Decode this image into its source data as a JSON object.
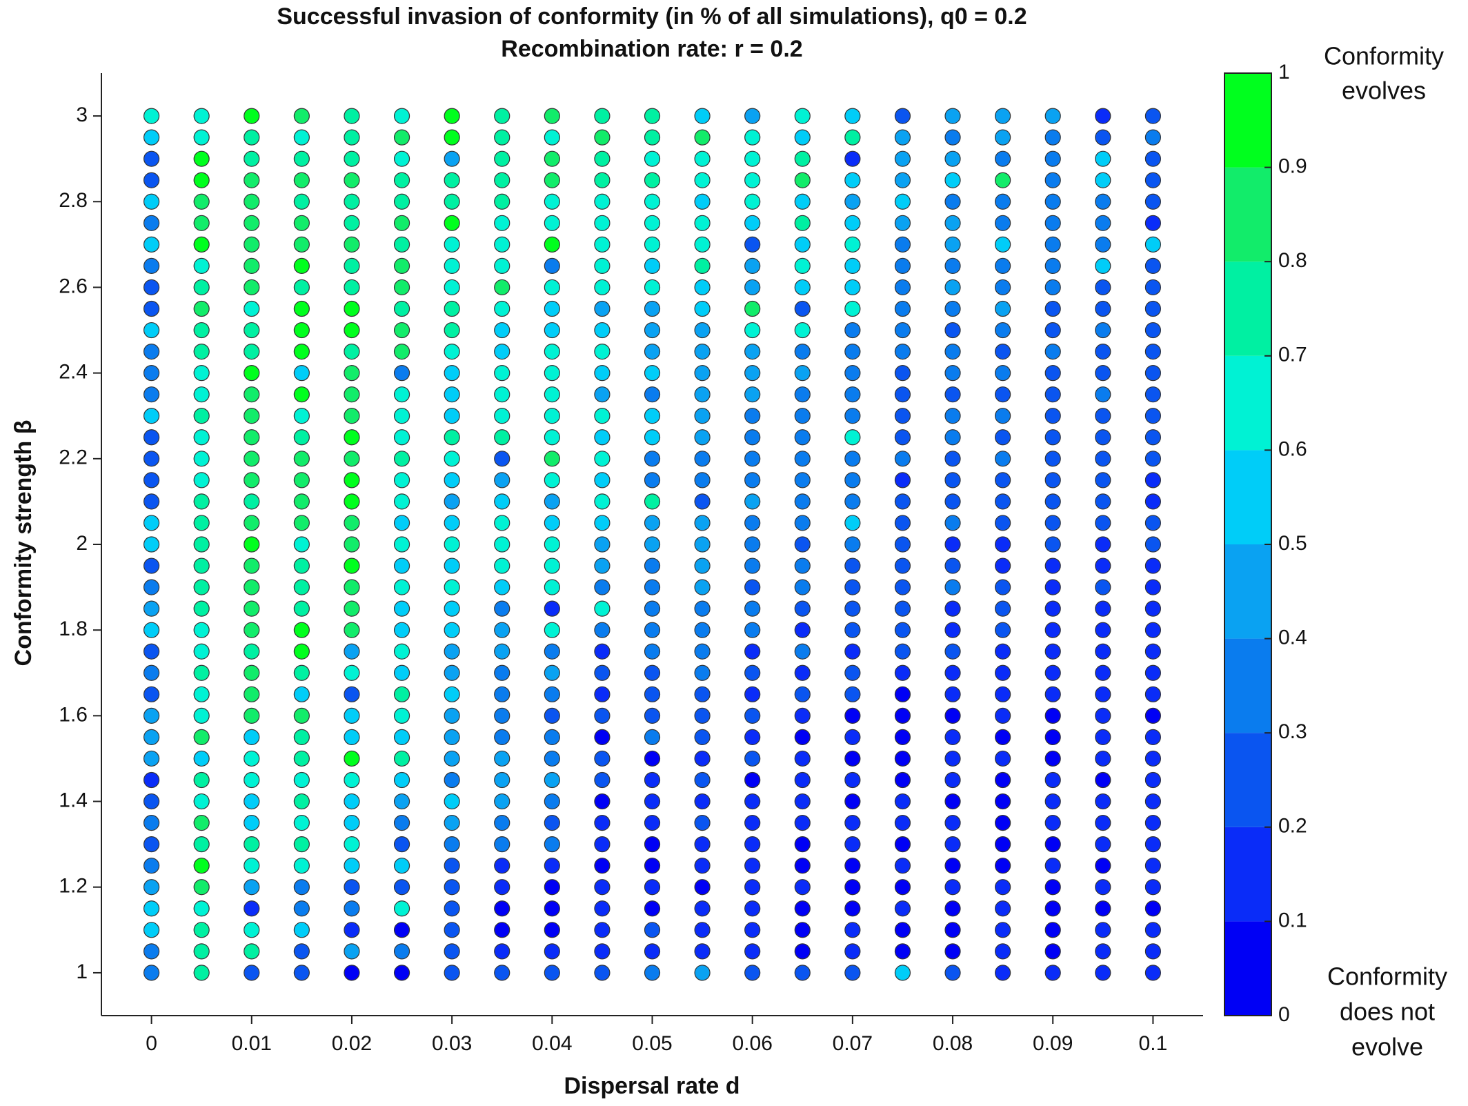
{
  "chart_data": {
    "type": "scatter",
    "title": "Successful invasion of conformity (in % of all simulations), q0 = 0.2",
    "subtitle": "Recombination rate: r = 0.2",
    "xlabel": "Dispersal rate d",
    "ylabel": "Conformity strength β",
    "x": [
      0,
      0.005,
      0.01,
      0.015,
      0.02,
      0.025,
      0.03,
      0.035,
      0.04,
      0.045,
      0.05,
      0.055,
      0.06,
      0.065,
      0.07,
      0.075,
      0.08,
      0.085,
      0.09,
      0.095,
      0.1
    ],
    "y": [
      3,
      2.95,
      2.9,
      2.85,
      2.8,
      2.75,
      2.7,
      2.65,
      2.6,
      2.55,
      2.5,
      2.45,
      2.4,
      2.35,
      2.3,
      2.25,
      2.2,
      2.15,
      2.1,
      2.05,
      2,
      1.95,
      1.9,
      1.85,
      1.8,
      1.75,
      1.7,
      1.65,
      1.6,
      1.55,
      1.5,
      1.45,
      1.4,
      1.35,
      1.3,
      1.25,
      1.2,
      1.15,
      1.1,
      1.05,
      1
    ],
    "values": [
      [
        0.65,
        0.65,
        0.95,
        0.85,
        0.75,
        0.65,
        0.95,
        0.75,
        0.85,
        0.75,
        0.75,
        0.55,
        0.45,
        0.65,
        0.55,
        0.25,
        0.45,
        0.45,
        0.45,
        0.15,
        0.25
      ],
      [
        0.55,
        0.65,
        0.75,
        0.65,
        0.75,
        0.85,
        0.95,
        0.75,
        0.65,
        0.85,
        0.75,
        0.85,
        0.65,
        0.55,
        0.75,
        0.45,
        0.35,
        0.45,
        0.35,
        0.25,
        0.35
      ],
      [
        0.25,
        0.95,
        0.75,
        0.75,
        0.75,
        0.65,
        0.45,
        0.75,
        0.85,
        0.75,
        0.65,
        0.65,
        0.65,
        0.75,
        0.15,
        0.45,
        0.45,
        0.35,
        0.35,
        0.55,
        0.25
      ],
      [
        0.25,
        0.95,
        0.85,
        0.85,
        0.85,
        0.75,
        0.75,
        0.75,
        0.85,
        0.75,
        0.75,
        0.65,
        0.65,
        0.85,
        0.55,
        0.45,
        0.55,
        0.85,
        0.35,
        0.55,
        0.25
      ],
      [
        0.55,
        0.85,
        0.85,
        0.75,
        0.75,
        0.75,
        0.75,
        0.75,
        0.65,
        0.65,
        0.65,
        0.55,
        0.65,
        0.55,
        0.45,
        0.55,
        0.35,
        0.35,
        0.35,
        0.35,
        0.25
      ],
      [
        0.35,
        0.85,
        0.85,
        0.85,
        0.75,
        0.85,
        0.95,
        0.65,
        0.65,
        0.65,
        0.65,
        0.65,
        0.55,
        0.75,
        0.55,
        0.45,
        0.45,
        0.35,
        0.35,
        0.35,
        0.15
      ],
      [
        0.55,
        0.95,
        0.85,
        0.85,
        0.85,
        0.75,
        0.65,
        0.65,
        0.95,
        0.65,
        0.65,
        0.65,
        0.25,
        0.55,
        0.65,
        0.35,
        0.45,
        0.55,
        0.35,
        0.35,
        0.55
      ],
      [
        0.35,
        0.65,
        0.85,
        0.95,
        0.75,
        0.85,
        0.65,
        0.65,
        0.35,
        0.65,
        0.55,
        0.75,
        0.45,
        0.65,
        0.55,
        0.35,
        0.35,
        0.35,
        0.35,
        0.55,
        0.25
      ],
      [
        0.25,
        0.75,
        0.85,
        0.75,
        0.75,
        0.85,
        0.65,
        0.85,
        0.65,
        0.65,
        0.65,
        0.55,
        0.45,
        0.55,
        0.55,
        0.35,
        0.45,
        0.35,
        0.35,
        0.25,
        0.25
      ],
      [
        0.25,
        0.85,
        0.65,
        0.95,
        0.95,
        0.75,
        0.75,
        0.65,
        0.55,
        0.45,
        0.45,
        0.55,
        0.85,
        0.25,
        0.65,
        0.35,
        0.35,
        0.45,
        0.25,
        0.25,
        0.25
      ],
      [
        0.55,
        0.75,
        0.75,
        0.95,
        0.95,
        0.85,
        0.75,
        0.55,
        0.55,
        0.55,
        0.45,
        0.45,
        0.65,
        0.65,
        0.35,
        0.35,
        0.25,
        0.35,
        0.25,
        0.35,
        0.25
      ],
      [
        0.35,
        0.75,
        0.75,
        0.95,
        0.75,
        0.85,
        0.65,
        0.55,
        0.65,
        0.65,
        0.45,
        0.45,
        0.45,
        0.35,
        0.35,
        0.35,
        0.35,
        0.25,
        0.35,
        0.25,
        0.25
      ],
      [
        0.35,
        0.65,
        0.95,
        0.55,
        0.85,
        0.35,
        0.55,
        0.65,
        0.65,
        0.55,
        0.55,
        0.45,
        0.45,
        0.45,
        0.35,
        0.25,
        0.35,
        0.35,
        0.25,
        0.25,
        0.25
      ],
      [
        0.35,
        0.65,
        0.85,
        0.95,
        0.85,
        0.65,
        0.55,
        0.65,
        0.65,
        0.45,
        0.35,
        0.45,
        0.45,
        0.35,
        0.35,
        0.25,
        0.25,
        0.25,
        0.25,
        0.35,
        0.25
      ],
      [
        0.55,
        0.75,
        0.85,
        0.65,
        0.85,
        0.65,
        0.55,
        0.65,
        0.65,
        0.65,
        0.55,
        0.45,
        0.35,
        0.35,
        0.35,
        0.25,
        0.35,
        0.35,
        0.25,
        0.25,
        0.25
      ],
      [
        0.25,
        0.65,
        0.85,
        0.75,
        0.95,
        0.65,
        0.75,
        0.75,
        0.65,
        0.55,
        0.55,
        0.45,
        0.35,
        0.35,
        0.65,
        0.25,
        0.35,
        0.25,
        0.25,
        0.25,
        0.25
      ],
      [
        0.25,
        0.65,
        0.85,
        0.85,
        0.85,
        0.75,
        0.65,
        0.25,
        0.85,
        0.65,
        0.35,
        0.35,
        0.35,
        0.35,
        0.35,
        0.35,
        0.25,
        0.35,
        0.25,
        0.25,
        0.25
      ],
      [
        0.25,
        0.65,
        0.85,
        0.85,
        0.95,
        0.65,
        0.55,
        0.45,
        0.65,
        0.55,
        0.35,
        0.35,
        0.35,
        0.35,
        0.35,
        0.15,
        0.25,
        0.25,
        0.25,
        0.25,
        0.15
      ],
      [
        0.25,
        0.75,
        0.75,
        0.85,
        0.95,
        0.65,
        0.45,
        0.55,
        0.45,
        0.65,
        0.75,
        0.25,
        0.45,
        0.35,
        0.35,
        0.25,
        0.25,
        0.25,
        0.25,
        0.25,
        0.15
      ],
      [
        0.55,
        0.75,
        0.85,
        0.85,
        0.85,
        0.55,
        0.55,
        0.65,
        0.55,
        0.55,
        0.45,
        0.45,
        0.35,
        0.35,
        0.55,
        0.25,
        0.35,
        0.25,
        0.25,
        0.25,
        0.25
      ],
      [
        0.55,
        0.75,
        0.95,
        0.65,
        0.85,
        0.65,
        0.65,
        0.65,
        0.65,
        0.45,
        0.45,
        0.45,
        0.35,
        0.25,
        0.35,
        0.25,
        0.15,
        0.15,
        0.25,
        0.15,
        0.25
      ],
      [
        0.25,
        0.75,
        0.85,
        0.75,
        0.95,
        0.55,
        0.55,
        0.65,
        0.65,
        0.45,
        0.35,
        0.45,
        0.35,
        0.35,
        0.25,
        0.25,
        0.25,
        0.15,
        0.15,
        0.15,
        0.15
      ],
      [
        0.35,
        0.75,
        0.85,
        0.75,
        0.85,
        0.65,
        0.65,
        0.55,
        0.65,
        0.35,
        0.35,
        0.45,
        0.25,
        0.35,
        0.25,
        0.25,
        0.35,
        0.25,
        0.15,
        0.25,
        0.15
      ],
      [
        0.45,
        0.75,
        0.85,
        0.75,
        0.85,
        0.55,
        0.55,
        0.35,
        0.15,
        0.65,
        0.35,
        0.35,
        0.35,
        0.25,
        0.25,
        0.25,
        0.15,
        0.25,
        0.15,
        0.15,
        0.15
      ],
      [
        0.55,
        0.65,
        0.85,
        0.95,
        0.85,
        0.55,
        0.55,
        0.45,
        0.65,
        0.35,
        0.35,
        0.35,
        0.35,
        0.15,
        0.25,
        0.25,
        0.15,
        0.25,
        0.15,
        0.15,
        0.15
      ],
      [
        0.25,
        0.65,
        0.75,
        0.95,
        0.45,
        0.65,
        0.45,
        0.45,
        0.35,
        0.15,
        0.35,
        0.35,
        0.15,
        0.35,
        0.15,
        0.25,
        0.25,
        0.15,
        0.15,
        0.15,
        0.15
      ],
      [
        0.35,
        0.75,
        0.85,
        0.75,
        0.65,
        0.55,
        0.45,
        0.35,
        0.45,
        0.25,
        0.25,
        0.35,
        0.25,
        0.15,
        0.25,
        0.15,
        0.15,
        0.15,
        0.15,
        0.15,
        0.15
      ],
      [
        0.25,
        0.65,
        0.85,
        0.55,
        0.25,
        0.75,
        0.55,
        0.35,
        0.35,
        0.15,
        0.25,
        0.25,
        0.15,
        0.25,
        0.25,
        0.05,
        0.15,
        0.15,
        0.15,
        0.15,
        0.15
      ],
      [
        0.45,
        0.65,
        0.85,
        0.85,
        0.55,
        0.65,
        0.45,
        0.35,
        0.25,
        0.25,
        0.25,
        0.25,
        0.25,
        0.15,
        0.05,
        0.05,
        0.05,
        0.15,
        0.05,
        0.15,
        0.05
      ],
      [
        0.45,
        0.85,
        0.55,
        0.75,
        0.55,
        0.55,
        0.45,
        0.35,
        0.35,
        0.05,
        0.35,
        0.25,
        0.15,
        0.05,
        0.15,
        0.05,
        0.15,
        0.05,
        0.05,
        0.15,
        0.15
      ],
      [
        0.45,
        0.55,
        0.65,
        0.75,
        0.95,
        0.75,
        0.45,
        0.45,
        0.35,
        0.25,
        0.05,
        0.15,
        0.25,
        0.15,
        0.05,
        0.05,
        0.15,
        0.15,
        0.05,
        0.15,
        0.15
      ],
      [
        0.15,
        0.75,
        0.65,
        0.65,
        0.65,
        0.55,
        0.35,
        0.45,
        0.45,
        0.25,
        0.15,
        0.25,
        0.05,
        0.15,
        0.15,
        0.05,
        0.15,
        0.05,
        0.15,
        0.05,
        0.15
      ],
      [
        0.25,
        0.65,
        0.55,
        0.75,
        0.55,
        0.45,
        0.55,
        0.45,
        0.35,
        0.05,
        0.15,
        0.15,
        0.15,
        0.15,
        0.05,
        0.15,
        0.05,
        0.05,
        0.15,
        0.15,
        0.15
      ],
      [
        0.35,
        0.85,
        0.55,
        0.65,
        0.55,
        0.35,
        0.45,
        0.35,
        0.25,
        0.15,
        0.15,
        0.25,
        0.15,
        0.15,
        0.15,
        0.15,
        0.15,
        0.05,
        0.15,
        0.15,
        0.15
      ],
      [
        0.25,
        0.75,
        0.75,
        0.75,
        0.65,
        0.25,
        0.35,
        0.35,
        0.35,
        0.15,
        0.05,
        0.15,
        0.15,
        0.05,
        0.15,
        0.05,
        0.15,
        0.05,
        0.05,
        0.15,
        0.15
      ],
      [
        0.35,
        0.95,
        0.65,
        0.65,
        0.55,
        0.55,
        0.25,
        0.15,
        0.15,
        0.05,
        0.05,
        0.15,
        0.15,
        0.05,
        0.05,
        0.15,
        0.05,
        0.05,
        0.15,
        0.05,
        0.15
      ],
      [
        0.45,
        0.85,
        0.45,
        0.35,
        0.25,
        0.25,
        0.25,
        0.15,
        0.05,
        0.15,
        0.15,
        0.05,
        0.15,
        0.15,
        0.05,
        0.05,
        0.15,
        0.15,
        0.05,
        0.15,
        0.15
      ],
      [
        0.55,
        0.65,
        0.15,
        0.35,
        0.35,
        0.65,
        0.25,
        0.05,
        0.05,
        0.15,
        0.05,
        0.15,
        0.15,
        0.05,
        0.05,
        0.15,
        0.05,
        0.15,
        0.05,
        0.05,
        0.05
      ],
      [
        0.55,
        0.75,
        0.65,
        0.55,
        0.15,
        0.05,
        0.25,
        0.05,
        0.05,
        0.15,
        0.25,
        0.15,
        0.15,
        0.05,
        0.15,
        0.05,
        0.05,
        0.15,
        0.05,
        0.15,
        0.15
      ],
      [
        0.35,
        0.75,
        0.75,
        0.25,
        0.45,
        0.35,
        0.25,
        0.15,
        0.15,
        0.15,
        0.15,
        0.15,
        0.15,
        0.05,
        0.15,
        0.05,
        0.05,
        0.15,
        0.05,
        0.15,
        0.15
      ],
      [
        0.35,
        0.75,
        0.25,
        0.25,
        0.05,
        0.05,
        0.25,
        0.25,
        0.25,
        0.25,
        0.35,
        0.45,
        0.25,
        0.25,
        0.25,
        0.55,
        0.25,
        0.15,
        0.15,
        0.15,
        0.15
      ]
    ],
    "xlim": [
      -0.005,
      0.105
    ],
    "ylim": [
      0.9,
      3.1
    ],
    "xticks": [
      0,
      0.01,
      0.02,
      0.03,
      0.04,
      0.05,
      0.06,
      0.07,
      0.08,
      0.09,
      0.1
    ],
    "yticks": [
      1,
      1.2,
      1.4,
      1.6,
      1.8,
      2,
      2.2,
      2.4,
      2.6,
      2.8,
      3
    ],
    "clim": [
      0,
      1
    ],
    "cticks": [
      0,
      0.1,
      0.2,
      0.3,
      0.4,
      0.5,
      0.6,
      0.7,
      0.8,
      0.9,
      1
    ],
    "colormap": [
      "#0000f5",
      "#0a2cf8",
      "#0a55f0",
      "#0a7cee",
      "#0aa2f2",
      "#00cdf8",
      "#00f2d4",
      "#00f0a2",
      "#12ec6a",
      "#00ff1e"
    ],
    "colorbar_top_label": [
      "Conformity",
      "evolves"
    ],
    "colorbar_bottom_label": [
      "Conformity",
      "does not",
      "evolve"
    ]
  }
}
